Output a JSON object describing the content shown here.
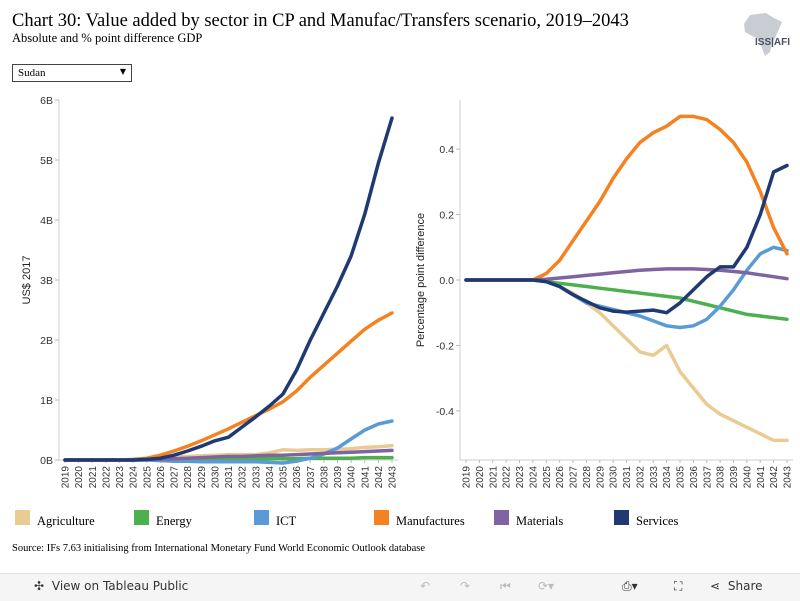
{
  "header": {
    "title": "Chart 30: Value added by sector in CP and Manufac/Transfers scenario, 2019–2043",
    "subtitle": "Absolute and % point difference GDP",
    "logo_text": "ISS|AFI"
  },
  "filter": {
    "selected": "Sudan"
  },
  "legend": [
    {
      "name": "Agriculture",
      "color": "#e8cc94"
    },
    {
      "name": "Energy",
      "color": "#4caf50"
    },
    {
      "name": "ICT",
      "color": "#5b9bd5"
    },
    {
      "name": "Manufactures",
      "color": "#f58220"
    },
    {
      "name": "Materials",
      "color": "#8064a2"
    },
    {
      "name": "Services",
      "color": "#1f3a73"
    }
  ],
  "source": "Source: IFs 7.63 initialising from International Monetary Fund World Economic Outlook database",
  "toolbar": {
    "view_label": "View on Tableau Public",
    "share_label": "Share"
  },
  "chart_data": [
    {
      "type": "line",
      "ylabel": "US$ 2017",
      "ylim": [
        0,
        6
      ],
      "yticks": [
        0,
        1,
        2,
        3,
        4,
        5,
        6
      ],
      "ytick_labels": [
        "0B",
        "1B",
        "2B",
        "3B",
        "4B",
        "5B",
        "6B"
      ],
      "x": [
        2019,
        2020,
        2021,
        2022,
        2023,
        2024,
        2025,
        2026,
        2027,
        2028,
        2029,
        2030,
        2031,
        2032,
        2033,
        2034,
        2035,
        2036,
        2037,
        2038,
        2039,
        2040,
        2041,
        2042,
        2043
      ],
      "series": [
        {
          "name": "Agriculture",
          "color": "#e8cc94",
          "values": [
            0,
            0,
            0,
            0,
            0,
            0,
            0.02,
            0.04,
            0.05,
            0.06,
            0.07,
            0.08,
            0.09,
            0.09,
            0.09,
            0.12,
            0.17,
            0.16,
            0.17,
            0.17,
            0.18,
            0.19,
            0.21,
            0.22,
            0.24
          ]
        },
        {
          "name": "Energy",
          "color": "#4caf50",
          "values": [
            0,
            0,
            0,
            0,
            0,
            0,
            0,
            0,
            0.01,
            0.01,
            0.01,
            0.01,
            0.01,
            0.01,
            0.02,
            0.02,
            0.02,
            0.02,
            0.03,
            0.03,
            0.03,
            0.03,
            0.04,
            0.04,
            0.04
          ]
        },
        {
          "name": "ICT",
          "color": "#5b9bd5",
          "values": [
            0,
            0,
            0,
            0,
            0,
            0,
            0,
            -0.01,
            -0.02,
            -0.02,
            -0.03,
            -0.03,
            -0.03,
            -0.03,
            -0.03,
            -0.04,
            -0.05,
            -0.02,
            0.03,
            0.1,
            0.2,
            0.35,
            0.5,
            0.6,
            0.65
          ]
        },
        {
          "name": "Manufactures",
          "color": "#f58220",
          "values": [
            0,
            0,
            0,
            0,
            0,
            0.01,
            0.03,
            0.08,
            0.15,
            0.23,
            0.32,
            0.42,
            0.52,
            0.63,
            0.74,
            0.85,
            0.97,
            1.15,
            1.38,
            1.58,
            1.78,
            1.98,
            2.18,
            2.33,
            2.45
          ]
        },
        {
          "name": "Materials",
          "color": "#8064a2",
          "values": [
            0,
            0,
            0,
            0,
            0,
            0,
            0.01,
            0.01,
            0.02,
            0.03,
            0.04,
            0.05,
            0.06,
            0.06,
            0.07,
            0.08,
            0.08,
            0.09,
            0.1,
            0.11,
            0.12,
            0.13,
            0.14,
            0.15,
            0.16
          ]
        },
        {
          "name": "Services",
          "color": "#1f3a73",
          "values": [
            0,
            0,
            0,
            0,
            0,
            0,
            0.01,
            0.03,
            0.08,
            0.15,
            0.23,
            0.32,
            0.38,
            0.55,
            0.72,
            0.9,
            1.1,
            1.5,
            2.0,
            2.45,
            2.9,
            3.4,
            4.1,
            4.95,
            5.7
          ]
        }
      ]
    },
    {
      "type": "line",
      "ylabel": "Percentage point difference",
      "ylim": [
        -0.55,
        0.55
      ],
      "yticks": [
        -0.4,
        -0.2,
        0,
        0.2,
        0.4
      ],
      "ytick_labels": [
        "-0.4",
        "-0.2",
        "0.0",
        "0.2",
        "0.4"
      ],
      "x": [
        2019,
        2020,
        2021,
        2022,
        2023,
        2024,
        2025,
        2026,
        2027,
        2028,
        2029,
        2030,
        2031,
        2032,
        2033,
        2034,
        2035,
        2036,
        2037,
        2038,
        2039,
        2040,
        2041,
        2042,
        2043
      ],
      "series": [
        {
          "name": "Agriculture",
          "color": "#e8cc94",
          "values": [
            0,
            0,
            0,
            0,
            0,
            0,
            -0.005,
            -0.02,
            -0.04,
            -0.07,
            -0.1,
            -0.14,
            -0.18,
            -0.22,
            -0.23,
            -0.2,
            -0.28,
            -0.33,
            -0.38,
            -0.41,
            -0.43,
            -0.45,
            -0.47,
            -0.49,
            -0.49
          ]
        },
        {
          "name": "Energy",
          "color": "#4caf50",
          "values": [
            0,
            0,
            0,
            0,
            0,
            0,
            -0.005,
            -0.01,
            -0.015,
            -0.02,
            -0.025,
            -0.03,
            -0.035,
            -0.04,
            -0.045,
            -0.05,
            -0.055,
            -0.065,
            -0.075,
            -0.085,
            -0.095,
            -0.105,
            -0.11,
            -0.115,
            -0.12
          ]
        },
        {
          "name": "ICT",
          "color": "#5b9bd5",
          "values": [
            0,
            0,
            0,
            0,
            0,
            0,
            -0.005,
            -0.02,
            -0.045,
            -0.07,
            -0.08,
            -0.09,
            -0.1,
            -0.11,
            -0.125,
            -0.14,
            -0.145,
            -0.14,
            -0.12,
            -0.08,
            -0.03,
            0.03,
            0.08,
            0.1,
            0.09
          ]
        },
        {
          "name": "Manufactures",
          "color": "#f58220",
          "values": [
            0,
            0,
            0,
            0,
            0,
            0,
            0.02,
            0.06,
            0.12,
            0.18,
            0.24,
            0.31,
            0.37,
            0.42,
            0.45,
            0.47,
            0.5,
            0.5,
            0.49,
            0.46,
            0.42,
            0.36,
            0.27,
            0.16,
            0.08
          ]
        },
        {
          "name": "Materials",
          "color": "#8064a2",
          "values": [
            0,
            0,
            0,
            0,
            0,
            0,
            0.002,
            0.006,
            0.01,
            0.014,
            0.018,
            0.022,
            0.026,
            0.03,
            0.032,
            0.034,
            0.034,
            0.034,
            0.032,
            0.03,
            0.026,
            0.022,
            0.016,
            0.01,
            0.004
          ]
        },
        {
          "name": "Services",
          "color": "#1f3a73",
          "values": [
            0,
            0,
            0,
            0,
            0,
            0,
            -0.005,
            -0.02,
            -0.045,
            -0.065,
            -0.085,
            -0.095,
            -0.098,
            -0.095,
            -0.092,
            -0.1,
            -0.07,
            -0.03,
            0.01,
            0.04,
            0.04,
            0.1,
            0.2,
            0.33,
            0.35
          ]
        }
      ]
    }
  ]
}
